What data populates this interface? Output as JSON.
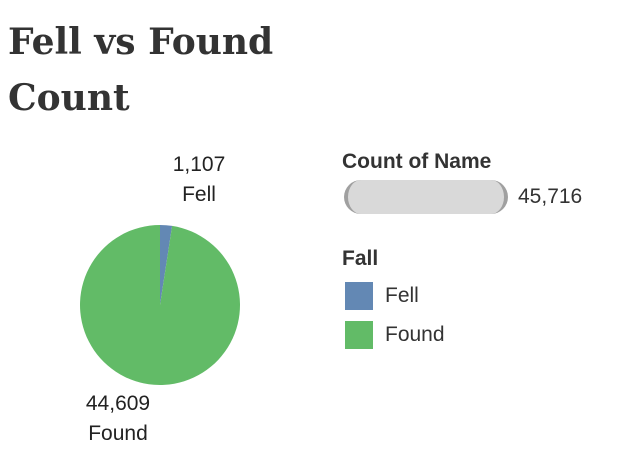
{
  "chart_data": {
    "type": "pie",
    "title_lines": [
      "Fell  vs  Found",
      "Count"
    ],
    "slices": [
      {
        "label": "Fell",
        "value": 1107,
        "value_label": "1,107",
        "color": "#6388b4"
      },
      {
        "label": "Found",
        "value": 44609,
        "value_label": "44,609",
        "color": "#62bb67"
      }
    ],
    "size_legend": {
      "title": "Count of Name",
      "value": "45,716"
    },
    "color_legend": {
      "title": "Fall",
      "items": [
        "Fell",
        "Found"
      ]
    }
  }
}
